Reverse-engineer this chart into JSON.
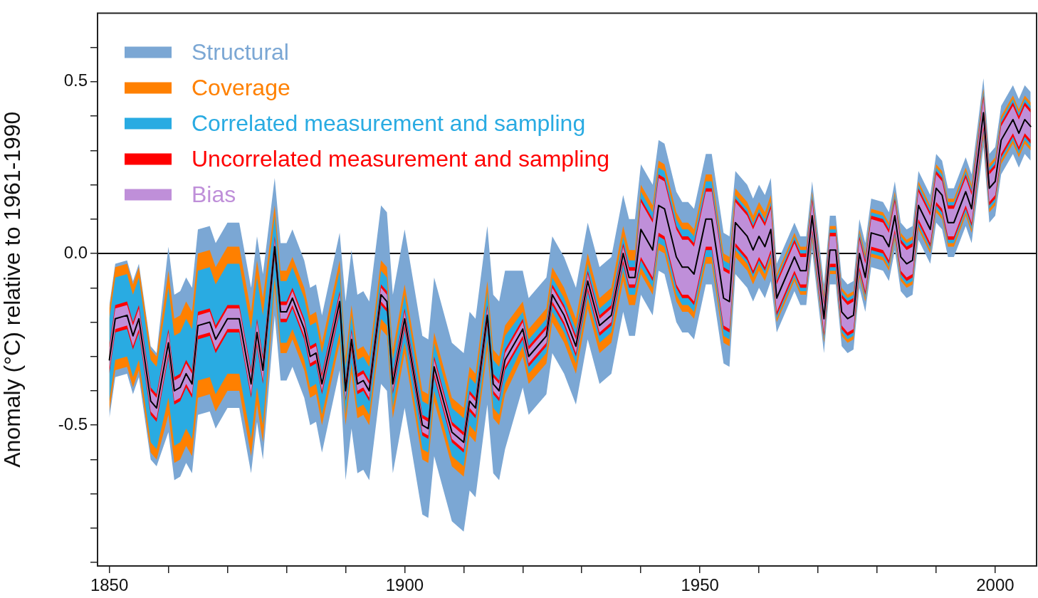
{
  "chart_data": {
    "type": "line",
    "ylabel": "Anomaly (°C) relative to 1961-1990",
    "x": [
      1850,
      1851,
      1853,
      1854,
      1855,
      1857,
      1858,
      1860,
      1861,
      1862,
      1863,
      1864,
      1865,
      1867,
      1868,
      1870,
      1872,
      1874,
      1875,
      1876,
      1878,
      1879,
      1880,
      1881,
      1883,
      1884,
      1885,
      1886,
      1889,
      1890,
      1891,
      1892,
      1893,
      1894,
      1896,
      1897,
      1898,
      1900,
      1903,
      1904,
      1905,
      1908,
      1910,
      1911,
      1912,
      1914,
      1915,
      1916,
      1917,
      1920,
      1921,
      1924,
      1925,
      1927,
      1929,
      1931,
      1933,
      1935,
      1937,
      1938,
      1939,
      1940,
      1942,
      1943,
      1944,
      1946,
      1947,
      1948,
      1949,
      1951,
      1952,
      1954,
      1955,
      1956,
      1958,
      1959,
      1960,
      1961,
      1962,
      1963,
      1966,
      1967,
      1968,
      1969,
      1971,
      1972,
      1973,
      1974,
      1975,
      1976,
      1977,
      1978,
      1979,
      1981,
      1982,
      1983,
      1984,
      1985,
      1986,
      1987,
      1989,
      1990,
      1991,
      1992,
      1993,
      1995,
      1996,
      1998,
      1999,
      2000,
      2001,
      2003,
      2004,
      2005,
      2006
    ],
    "series": [
      {
        "name": "Structural",
        "type": "area",
        "values": [
          null,
          null,
          null,
          null,
          null,
          null,
          null,
          null,
          null,
          null,
          null,
          null,
          null,
          null,
          null,
          null,
          null,
          null,
          null,
          null,
          null,
          null,
          null,
          null,
          null,
          null,
          null,
          null,
          null,
          null,
          null,
          null,
          null,
          null,
          null,
          null,
          null,
          null,
          null,
          null,
          null,
          null,
          null,
          null,
          null,
          null,
          null,
          null,
          null,
          null,
          null,
          null,
          null,
          null,
          null,
          null,
          null,
          null,
          null,
          null,
          null,
          null,
          null,
          null,
          null,
          null,
          null,
          null,
          null,
          null,
          null,
          null,
          null,
          null,
          null,
          null,
          null,
          null,
          null,
          null,
          null,
          null,
          null,
          null,
          null,
          null,
          null,
          null,
          null,
          null,
          null,
          null,
          null,
          null,
          null,
          null,
          null,
          null,
          null,
          null,
          null,
          null,
          null,
          null,
          null,
          null,
          null,
          null,
          null,
          null,
          null,
          null,
          null,
          null,
          null
        ],
        "color": "#7ba7d4",
        "lower": [
          -0.48,
          -0.36,
          -0.35,
          -0.41,
          -0.36,
          -0.6,
          -0.62,
          -0.52,
          -0.66,
          -0.65,
          -0.61,
          -0.64,
          -0.47,
          -0.46,
          -0.51,
          -0.45,
          -0.45,
          -0.64,
          -0.49,
          -0.6,
          -0.18,
          -0.37,
          -0.37,
          -0.33,
          -0.42,
          -0.5,
          -0.49,
          -0.58,
          -0.34,
          -0.66,
          -0.51,
          -0.64,
          -0.63,
          -0.66,
          -0.38,
          -0.4,
          -0.64,
          -0.45,
          -0.76,
          -0.77,
          -0.59,
          -0.78,
          -0.81,
          -0.69,
          -0.71,
          -0.44,
          -0.64,
          -0.66,
          -0.57,
          -0.39,
          -0.47,
          -0.41,
          -0.29,
          -0.35,
          -0.44,
          -0.25,
          -0.38,
          -0.35,
          -0.17,
          -0.24,
          -0.24,
          -0.12,
          -0.18,
          -0.05,
          -0.06,
          -0.2,
          -0.23,
          -0.23,
          -0.25,
          -0.09,
          -0.09,
          -0.32,
          -0.33,
          -0.06,
          -0.1,
          -0.14,
          -0.1,
          -0.13,
          -0.08,
          -0.23,
          -0.11,
          -0.15,
          -0.15,
          0.01,
          -0.29,
          -0.09,
          -0.09,
          -0.27,
          -0.29,
          -0.28,
          -0.1,
          -0.17,
          -0.04,
          -0.05,
          -0.08,
          0.01,
          -0.11,
          -0.13,
          -0.12,
          0.04,
          -0.03,
          0.09,
          0.07,
          -0.01,
          -0.01,
          0.08,
          0.03,
          0.31,
          0.09,
          0.11,
          0.23,
          0.29,
          0.25,
          0.29,
          0.27
        ],
        "upper": [
          -0.15,
          -0.03,
          -0.02,
          -0.08,
          -0.03,
          -0.27,
          -0.29,
          0.02,
          -0.12,
          -0.11,
          -0.07,
          -0.1,
          0.07,
          0.08,
          0.03,
          0.09,
          0.09,
          -0.1,
          0.05,
          -0.06,
          0.22,
          0.03,
          0.03,
          0.07,
          -0.02,
          -0.1,
          -0.09,
          -0.18,
          0.06,
          -0.14,
          0.01,
          -0.12,
          -0.11,
          -0.14,
          0.14,
          0.12,
          -0.12,
          0.07,
          -0.24,
          -0.25,
          -0.07,
          -0.26,
          -0.29,
          -0.17,
          -0.19,
          0.08,
          -0.12,
          -0.14,
          -0.05,
          -0.05,
          -0.13,
          -0.07,
          0.05,
          -0.01,
          -0.1,
          0.09,
          -0.04,
          -0.01,
          0.17,
          0.1,
          0.1,
          0.26,
          0.2,
          0.33,
          0.32,
          0.18,
          0.15,
          0.15,
          0.13,
          0.29,
          0.29,
          0.06,
          0.05,
          0.24,
          0.2,
          0.16,
          0.2,
          0.17,
          0.22,
          -0.03,
          0.09,
          0.05,
          0.05,
          0.21,
          -0.09,
          0.11,
          0.11,
          -0.07,
          -0.09,
          -0.08,
          0.1,
          0.03,
          0.16,
          0.15,
          0.12,
          0.21,
          0.09,
          0.07,
          0.08,
          0.24,
          0.17,
          0.29,
          0.27,
          0.19,
          0.19,
          0.28,
          0.23,
          0.51,
          0.29,
          0.31,
          0.43,
          0.49,
          0.45,
          0.49,
          0.47
        ]
      },
      {
        "name": "Coverage",
        "type": "area",
        "values": [
          null,
          null,
          null,
          null,
          null,
          null,
          null,
          null,
          null,
          null,
          null,
          null,
          null,
          null,
          null,
          null,
          null,
          null,
          null,
          null,
          null,
          null,
          null,
          null,
          null,
          null,
          null,
          null,
          null,
          null,
          null,
          null,
          null,
          null,
          null,
          null,
          null,
          null,
          null,
          null,
          null,
          null,
          null,
          null,
          null,
          null,
          null,
          null,
          null,
          null,
          null,
          null,
          null,
          null,
          null,
          null,
          null,
          null,
          null,
          null,
          null,
          null,
          null,
          null,
          null,
          null,
          null,
          null,
          null,
          null,
          null,
          null,
          null,
          null,
          null,
          null,
          null,
          null,
          null,
          null,
          null,
          null,
          null,
          null,
          null,
          null,
          null,
          null,
          null,
          null,
          null,
          null,
          null,
          null,
          null,
          null,
          null,
          null,
          null,
          null,
          null,
          null,
          null,
          null,
          null,
          null,
          null,
          null,
          null,
          null,
          null,
          null,
          null,
          null,
          null
        ],
        "color": "#ff8000",
        "lower": [
          -0.46,
          -0.34,
          -0.33,
          -0.39,
          -0.34,
          -0.58,
          -0.6,
          -0.47,
          -0.61,
          -0.6,
          -0.56,
          -0.59,
          -0.42,
          -0.41,
          -0.46,
          -0.4,
          -0.4,
          -0.59,
          -0.44,
          -0.55,
          -0.1,
          -0.29,
          -0.29,
          -0.25,
          -0.34,
          -0.42,
          -0.41,
          -0.5,
          -0.26,
          -0.5,
          -0.35,
          -0.48,
          -0.47,
          -0.5,
          -0.22,
          -0.24,
          -0.48,
          -0.29,
          -0.6,
          -0.61,
          -0.43,
          -0.62,
          -0.65,
          -0.53,
          -0.55,
          -0.28,
          -0.48,
          -0.5,
          -0.41,
          -0.3,
          -0.38,
          -0.32,
          -0.2,
          -0.26,
          -0.35,
          -0.16,
          -0.29,
          -0.26,
          -0.08,
          -0.15,
          -0.15,
          -0.06,
          -0.12,
          0.01,
          0.0,
          -0.14,
          -0.17,
          -0.17,
          -0.19,
          -0.03,
          -0.03,
          -0.26,
          -0.27,
          -0.01,
          -0.05,
          -0.09,
          -0.05,
          -0.08,
          -0.03,
          -0.2,
          -0.08,
          -0.12,
          -0.12,
          0.04,
          -0.26,
          -0.06,
          -0.06,
          -0.24,
          -0.26,
          -0.25,
          -0.07,
          -0.14,
          -0.01,
          -0.02,
          -0.05,
          0.04,
          -0.08,
          -0.1,
          -0.09,
          0.07,
          0.0,
          0.12,
          0.1,
          0.02,
          0.02,
          0.11,
          0.06,
          0.34,
          0.12,
          0.14,
          0.26,
          0.32,
          0.28,
          0.32,
          0.3
        ],
        "upper": [
          -0.16,
          -0.04,
          -0.03,
          -0.09,
          -0.04,
          -0.28,
          -0.3,
          -0.05,
          -0.19,
          -0.18,
          -0.14,
          -0.17,
          0.0,
          0.01,
          -0.04,
          0.02,
          0.02,
          -0.17,
          -0.02,
          -0.13,
          0.14,
          -0.05,
          -0.05,
          -0.01,
          -0.1,
          -0.18,
          -0.17,
          -0.26,
          -0.02,
          -0.3,
          -0.15,
          -0.28,
          -0.27,
          -0.3,
          -0.02,
          -0.04,
          -0.28,
          -0.09,
          -0.4,
          -0.41,
          -0.23,
          -0.42,
          -0.45,
          -0.33,
          -0.35,
          -0.08,
          -0.28,
          -0.3,
          -0.21,
          -0.14,
          -0.22,
          -0.16,
          -0.04,
          -0.1,
          -0.19,
          0.0,
          -0.13,
          -0.1,
          0.08,
          0.01,
          0.01,
          0.2,
          0.14,
          0.27,
          0.26,
          0.12,
          0.09,
          0.09,
          0.07,
          0.23,
          0.23,
          0.0,
          -0.01,
          0.19,
          0.15,
          0.11,
          0.15,
          0.12,
          0.17,
          -0.06,
          0.06,
          0.02,
          0.02,
          0.18,
          -0.12,
          0.08,
          0.08,
          -0.1,
          -0.12,
          -0.11,
          0.07,
          0.0,
          0.13,
          0.12,
          0.09,
          0.18,
          0.06,
          0.04,
          0.05,
          0.21,
          0.14,
          0.26,
          0.24,
          0.16,
          0.16,
          0.25,
          0.2,
          0.48,
          0.26,
          0.28,
          0.4,
          0.46,
          0.42,
          0.46,
          0.44
        ]
      },
      {
        "name": "Correlated measurement and sampling",
        "type": "area",
        "values": [
          null,
          null,
          null,
          null,
          null,
          null,
          null,
          null,
          null,
          null,
          null,
          null,
          null,
          null,
          null,
          null,
          null,
          null,
          null,
          null,
          null,
          null,
          null,
          null,
          null,
          null,
          null,
          null,
          null,
          null,
          null,
          null,
          null,
          null,
          null,
          null,
          null,
          null,
          null,
          null,
          null,
          null,
          null,
          null,
          null,
          null,
          null,
          null,
          null,
          null,
          null,
          null,
          null,
          null,
          null,
          null,
          null,
          null,
          null,
          null,
          null,
          null,
          null,
          null,
          null,
          null,
          null,
          null,
          null,
          null,
          null,
          null,
          null,
          null,
          null,
          null,
          null,
          null,
          null,
          null,
          null,
          null,
          null,
          null,
          null,
          null,
          null,
          null,
          null,
          null,
          null,
          null,
          null,
          null,
          null,
          null,
          null,
          null,
          null,
          null,
          null,
          null,
          null,
          null,
          null,
          null,
          null,
          null,
          null,
          null,
          null,
          null,
          null,
          null,
          null
        ],
        "color": "#29abe2",
        "lower": [
          -0.43,
          -0.31,
          -0.3,
          -0.36,
          -0.31,
          -0.55,
          -0.57,
          -0.42,
          -0.56,
          -0.55,
          -0.51,
          -0.54,
          -0.37,
          -0.36,
          -0.41,
          -0.35,
          -0.35,
          -0.54,
          -0.39,
          -0.5,
          -0.07,
          -0.26,
          -0.26,
          -0.22,
          -0.31,
          -0.39,
          -0.38,
          -0.47,
          -0.23,
          -0.47,
          -0.32,
          -0.45,
          -0.44,
          -0.47,
          -0.19,
          -0.21,
          -0.45,
          -0.26,
          -0.57,
          -0.58,
          -0.4,
          -0.59,
          -0.62,
          -0.5,
          -0.52,
          -0.25,
          -0.45,
          -0.47,
          -0.38,
          -0.27,
          -0.35,
          -0.29,
          -0.17,
          -0.23,
          -0.32,
          -0.13,
          -0.26,
          -0.23,
          -0.05,
          -0.12,
          -0.12,
          -0.04,
          -0.1,
          0.03,
          0.02,
          -0.12,
          -0.15,
          -0.15,
          -0.17,
          -0.01,
          -0.01,
          -0.24,
          -0.25,
          0.01,
          -0.03,
          -0.07,
          -0.03,
          -0.06,
          -0.01,
          -0.19,
          -0.07,
          -0.11,
          -0.11,
          0.05,
          -0.25,
          -0.05,
          -0.05,
          -0.23,
          -0.25,
          -0.24,
          -0.06,
          -0.13,
          0.0,
          -0.01,
          -0.04,
          0.05,
          -0.07,
          -0.09,
          -0.08,
          0.08,
          0.01,
          0.13,
          0.11,
          0.03,
          0.03,
          0.12,
          0.07,
          0.35,
          0.13,
          0.15,
          0.27,
          0.33,
          0.29,
          0.33,
          0.31
        ],
        "upper": [
          -0.19,
          -0.07,
          -0.06,
          -0.12,
          -0.07,
          -0.31,
          -0.33,
          -0.1,
          -0.24,
          -0.23,
          -0.19,
          -0.22,
          -0.05,
          -0.04,
          -0.09,
          -0.03,
          -0.03,
          -0.22,
          -0.07,
          -0.18,
          0.11,
          -0.08,
          -0.08,
          -0.04,
          -0.13,
          -0.21,
          -0.2,
          -0.29,
          -0.05,
          -0.33,
          -0.18,
          -0.31,
          -0.3,
          -0.33,
          -0.05,
          -0.07,
          -0.31,
          -0.12,
          -0.43,
          -0.44,
          -0.26,
          -0.45,
          -0.48,
          -0.36,
          -0.38,
          -0.11,
          -0.31,
          -0.33,
          -0.24,
          -0.17,
          -0.25,
          -0.19,
          -0.07,
          -0.13,
          -0.22,
          -0.03,
          -0.16,
          -0.13,
          0.05,
          -0.02,
          -0.02,
          0.18,
          0.12,
          0.25,
          0.24,
          0.1,
          0.07,
          0.07,
          0.05,
          0.21,
          0.21,
          -0.02,
          -0.03,
          0.17,
          0.13,
          0.09,
          0.13,
          0.1,
          0.15,
          -0.07,
          0.05,
          0.01,
          0.01,
          0.17,
          -0.13,
          0.07,
          0.07,
          -0.11,
          -0.13,
          -0.12,
          0.06,
          -0.01,
          0.12,
          0.11,
          0.08,
          0.17,
          0.05,
          0.03,
          0.04,
          0.2,
          0.13,
          0.25,
          0.23,
          0.15,
          0.15,
          0.24,
          0.19,
          0.47,
          0.25,
          0.27,
          0.39,
          0.45,
          0.41,
          0.45,
          0.43
        ]
      },
      {
        "name": "Uncorrelated measurement and sampling",
        "type": "area",
        "values": [
          null,
          null,
          null,
          null,
          null,
          null,
          null,
          null,
          null,
          null,
          null,
          null,
          null,
          null,
          null,
          null,
          null,
          null,
          null,
          null,
          null,
          null,
          null,
          null,
          null,
          null,
          null,
          null,
          null,
          null,
          null,
          null,
          null,
          null,
          null,
          null,
          null,
          null,
          null,
          null,
          null,
          null,
          null,
          null,
          null,
          null,
          null,
          null,
          null,
          null,
          null,
          null,
          null,
          null,
          null,
          null,
          null,
          null,
          null,
          null,
          null,
          null,
          null,
          null,
          null,
          null,
          null,
          null,
          null,
          null,
          null,
          null,
          null,
          null,
          null,
          null,
          null,
          null,
          null,
          null,
          null,
          null,
          null,
          null,
          null,
          null,
          null,
          null,
          null,
          null,
          null,
          null,
          null,
          null,
          null,
          null,
          null,
          null,
          null,
          null,
          null,
          null,
          null,
          null,
          null,
          null,
          null,
          null,
          null,
          null,
          null,
          null,
          null,
          null,
          null
        ],
        "color": "#ff0000",
        "lower": [
          -0.35,
          -0.23,
          -0.22,
          -0.28,
          -0.23,
          -0.47,
          -0.49,
          -0.3,
          -0.44,
          -0.43,
          -0.39,
          -0.42,
          -0.25,
          -0.24,
          -0.29,
          -0.23,
          -0.23,
          -0.42,
          -0.27,
          -0.38,
          -0.01,
          -0.2,
          -0.2,
          -0.16,
          -0.25,
          -0.33,
          -0.32,
          -0.41,
          -0.17,
          -0.43,
          -0.28,
          -0.41,
          -0.4,
          -0.43,
          -0.15,
          -0.17,
          -0.41,
          -0.22,
          -0.53,
          -0.54,
          -0.36,
          -0.55,
          -0.58,
          -0.46,
          -0.48,
          -0.21,
          -0.41,
          -0.43,
          -0.34,
          -0.25,
          -0.33,
          -0.27,
          -0.15,
          -0.21,
          -0.3,
          -0.11,
          -0.24,
          -0.21,
          -0.03,
          -0.1,
          -0.1,
          -0.02,
          -0.08,
          0.05,
          0.04,
          -0.1,
          -0.13,
          -0.13,
          -0.15,
          0.01,
          0.01,
          -0.22,
          -0.23,
          0.02,
          -0.02,
          -0.06,
          -0.02,
          -0.05,
          0.0,
          -0.18,
          -0.06,
          -0.1,
          -0.1,
          0.06,
          -0.24,
          -0.04,
          -0.04,
          -0.22,
          -0.24,
          -0.23,
          -0.05,
          -0.12,
          0.01,
          0.0,
          -0.03,
          0.06,
          -0.06,
          -0.08,
          -0.07,
          0.09,
          0.02,
          0.14,
          0.12,
          0.04,
          0.04,
          0.13,
          0.08,
          0.36,
          0.14,
          0.16,
          0.28,
          0.34,
          0.3,
          0.34,
          0.32
        ],
        "upper": [
          -0.27,
          -0.15,
          -0.14,
          -0.2,
          -0.15,
          -0.39,
          -0.41,
          -0.22,
          -0.36,
          -0.35,
          -0.31,
          -0.34,
          -0.17,
          -0.16,
          -0.21,
          -0.15,
          -0.15,
          -0.34,
          -0.19,
          -0.3,
          0.05,
          -0.14,
          -0.14,
          -0.1,
          -0.19,
          -0.27,
          -0.26,
          -0.35,
          -0.11,
          -0.37,
          -0.22,
          -0.35,
          -0.34,
          -0.37,
          -0.09,
          -0.11,
          -0.35,
          -0.16,
          -0.47,
          -0.48,
          -0.3,
          -0.49,
          -0.52,
          -0.4,
          -0.42,
          -0.15,
          -0.35,
          -0.37,
          -0.28,
          -0.19,
          -0.27,
          -0.21,
          -0.09,
          -0.15,
          -0.24,
          -0.05,
          -0.18,
          -0.15,
          0.03,
          -0.04,
          -0.04,
          0.16,
          0.1,
          0.23,
          0.22,
          0.08,
          0.05,
          0.05,
          0.03,
          0.19,
          0.19,
          -0.04,
          -0.05,
          0.16,
          0.12,
          0.08,
          0.12,
          0.09,
          0.14,
          -0.08,
          0.04,
          0.0,
          0.0,
          0.16,
          -0.14,
          0.06,
          0.06,
          -0.12,
          -0.14,
          -0.13,
          0.05,
          -0.02,
          0.11,
          0.1,
          0.07,
          0.16,
          0.04,
          0.02,
          0.03,
          0.19,
          0.12,
          0.24,
          0.22,
          0.14,
          0.14,
          0.23,
          0.18,
          0.46,
          0.24,
          0.26,
          0.38,
          0.44,
          0.4,
          0.44,
          0.42
        ]
      },
      {
        "name": "Bias",
        "type": "area",
        "values": [
          null,
          null,
          null,
          null,
          null,
          null,
          null,
          null,
          null,
          null,
          null,
          null,
          null,
          null,
          null,
          null,
          null,
          null,
          null,
          null,
          null,
          null,
          null,
          null,
          null,
          null,
          null,
          null,
          null,
          null,
          null,
          null,
          null,
          null,
          null,
          null,
          null,
          null,
          null,
          null,
          null,
          null,
          null,
          null,
          null,
          null,
          null,
          null,
          null,
          null,
          null,
          null,
          null,
          null,
          null,
          null,
          null,
          null,
          null,
          null,
          null,
          null,
          null,
          null,
          null,
          null,
          null,
          null,
          null,
          null,
          null,
          null,
          null,
          null,
          null,
          null,
          null,
          null,
          null,
          null,
          null,
          null,
          null,
          null,
          null,
          null,
          null,
          null,
          null,
          null,
          null,
          null,
          null,
          null,
          null,
          null,
          null,
          null,
          null,
          null,
          null,
          null,
          null,
          null,
          null,
          null,
          null,
          null,
          null,
          null,
          null,
          null,
          null,
          null,
          null
        ],
        "color": "#bf8fd9",
        "lower": [
          -0.34,
          -0.22,
          -0.21,
          -0.27,
          -0.22,
          -0.46,
          -0.48,
          -0.29,
          -0.43,
          -0.42,
          -0.38,
          -0.41,
          -0.24,
          -0.23,
          -0.28,
          -0.22,
          -0.22,
          -0.41,
          -0.26,
          -0.37,
          0.0,
          -0.19,
          -0.19,
          -0.15,
          -0.24,
          -0.32,
          -0.31,
          -0.4,
          -0.16,
          -0.42,
          -0.27,
          -0.4,
          -0.39,
          -0.42,
          -0.14,
          -0.16,
          -0.4,
          -0.21,
          -0.52,
          -0.53,
          -0.35,
          -0.54,
          -0.57,
          -0.45,
          -0.47,
          -0.2,
          -0.4,
          -0.42,
          -0.33,
          -0.24,
          -0.32,
          -0.26,
          -0.14,
          -0.2,
          -0.29,
          -0.1,
          -0.23,
          -0.2,
          -0.02,
          -0.09,
          -0.09,
          -0.01,
          -0.07,
          0.06,
          0.05,
          -0.09,
          -0.12,
          -0.12,
          -0.14,
          0.02,
          0.02,
          -0.21,
          -0.22,
          0.03,
          -0.01,
          -0.05,
          -0.01,
          -0.04,
          0.01,
          -0.17,
          -0.05,
          -0.09,
          -0.09,
          0.07,
          -0.23,
          -0.03,
          -0.03,
          -0.21,
          -0.23,
          -0.22,
          -0.04,
          -0.11,
          0.02,
          0.01,
          -0.02,
          0.07,
          -0.05,
          -0.07,
          -0.06,
          0.1,
          0.03,
          0.15,
          0.13,
          0.05,
          0.05,
          0.14,
          0.09,
          0.37,
          0.15,
          0.17,
          0.29,
          0.35,
          0.31,
          0.35,
          0.33
        ],
        "upper": [
          -0.28,
          -0.16,
          -0.15,
          -0.21,
          -0.16,
          -0.4,
          -0.42,
          -0.23,
          -0.37,
          -0.36,
          -0.32,
          -0.35,
          -0.18,
          -0.17,
          -0.22,
          -0.16,
          -0.16,
          -0.35,
          -0.2,
          -0.31,
          0.04,
          -0.15,
          -0.15,
          -0.11,
          -0.2,
          -0.28,
          -0.27,
          -0.36,
          -0.12,
          -0.38,
          -0.23,
          -0.36,
          -0.35,
          -0.38,
          -0.1,
          -0.12,
          -0.36,
          -0.17,
          -0.48,
          -0.49,
          -0.31,
          -0.5,
          -0.53,
          -0.41,
          -0.43,
          -0.16,
          -0.36,
          -0.38,
          -0.29,
          -0.2,
          -0.28,
          -0.22,
          -0.1,
          -0.16,
          -0.25,
          -0.06,
          -0.19,
          -0.16,
          0.02,
          -0.05,
          -0.05,
          0.15,
          0.09,
          0.22,
          0.21,
          0.07,
          0.04,
          0.04,
          0.02,
          0.18,
          0.18,
          -0.05,
          -0.06,
          0.15,
          0.11,
          0.07,
          0.11,
          0.08,
          0.13,
          -0.09,
          0.03,
          -0.01,
          -0.01,
          0.15,
          -0.15,
          0.05,
          0.05,
          -0.13,
          -0.15,
          -0.14,
          0.04,
          -0.03,
          0.1,
          0.09,
          0.06,
          0.15,
          0.03,
          0.01,
          0.02,
          0.18,
          0.11,
          0.23,
          0.21,
          0.13,
          0.13,
          0.22,
          0.17,
          0.45,
          0.23,
          0.25,
          0.37,
          0.43,
          0.39,
          0.43,
          0.41
        ]
      },
      {
        "color": "#000000",
        "values": [
          -0.31,
          -0.19,
          -0.18,
          -0.24,
          -0.19,
          -0.43,
          -0.45,
          -0.26,
          -0.4,
          -0.39,
          -0.35,
          -0.38,
          -0.21,
          -0.2,
          -0.25,
          -0.19,
          -0.19,
          -0.38,
          -0.23,
          -0.34,
          0.02,
          -0.17,
          -0.17,
          -0.13,
          -0.22,
          -0.3,
          -0.29,
          -0.38,
          -0.14,
          -0.4,
          -0.25,
          -0.38,
          -0.37,
          -0.4,
          -0.12,
          -0.14,
          -0.38,
          -0.19,
          -0.5,
          -0.51,
          -0.33,
          -0.52,
          -0.55,
          -0.43,
          -0.45,
          -0.18,
          -0.38,
          -0.4,
          -0.31,
          -0.22,
          -0.3,
          -0.24,
          -0.12,
          -0.18,
          -0.27,
          -0.08,
          -0.21,
          -0.18,
          0.0,
          -0.07,
          -0.07,
          0.07,
          0.01,
          0.14,
          0.13,
          -0.01,
          -0.04,
          -0.04,
          -0.06,
          0.1,
          0.1,
          -0.13,
          -0.14,
          0.09,
          0.05,
          0.01,
          0.05,
          0.02,
          0.07,
          -0.13,
          -0.01,
          -0.05,
          -0.05,
          0.11,
          -0.19,
          0.01,
          0.01,
          -0.17,
          -0.19,
          -0.18,
          0.0,
          -0.07,
          0.06,
          0.05,
          0.02,
          0.11,
          -0.01,
          -0.03,
          -0.02,
          0.14,
          0.07,
          0.19,
          0.17,
          0.09,
          0.09,
          0.18,
          0.13,
          0.41,
          0.19,
          0.21,
          0.33,
          0.39,
          0.35,
          0.39,
          0.37
        ]
      }
    ],
    "xlim": [
      1848,
      2007
    ],
    "xticks": [
      1850,
      {
        "value": 1860,
        "label": null
      },
      {
        "value": 1870,
        "label": null
      },
      {
        "value": 1880,
        "label": null
      },
      {
        "value": 1890,
        "label": null
      },
      1900,
      {
        "value": 1910,
        "label": null
      },
      {
        "value": 1920,
        "label": null
      },
      {
        "value": 1930,
        "label": null
      },
      {
        "value": 1940,
        "label": null
      },
      1950,
      {
        "value": 1960,
        "label": null
      },
      {
        "value": 1970,
        "label": null
      },
      {
        "value": 1980,
        "label": null
      },
      {
        "value": 1990,
        "label": null
      },
      2000
    ],
    "ylim": [
      -0.91,
      0.7
    ],
    "yticks": [
      {
        "value": -0.9,
        "label": null
      },
      {
        "value": -0.8,
        "label": null
      },
      {
        "value": -0.7,
        "label": null
      },
      {
        "value": -0.6,
        "label": null
      },
      -0.5,
      {
        "value": -0.4,
        "label": null
      },
      {
        "value": -0.3,
        "label": null
      },
      {
        "value": -0.2,
        "label": null
      },
      {
        "value": -0.1,
        "label": null
      },
      {
        "value": 0,
        "label": "0.0"
      },
      {
        "value": 0.1,
        "label": null
      },
      {
        "value": 0.2,
        "label": null
      },
      {
        "value": 0.3,
        "label": null
      },
      {
        "value": 0.4,
        "label": null
      },
      0.5,
      {
        "value": 0.6,
        "label": null
      }
    ],
    "ref_lines": [
      {
        "axis": "y",
        "value": 0,
        "color": "#000000"
      }
    ],
    "legend": "top left",
    "marker": "none",
    "line_style": "solid"
  }
}
